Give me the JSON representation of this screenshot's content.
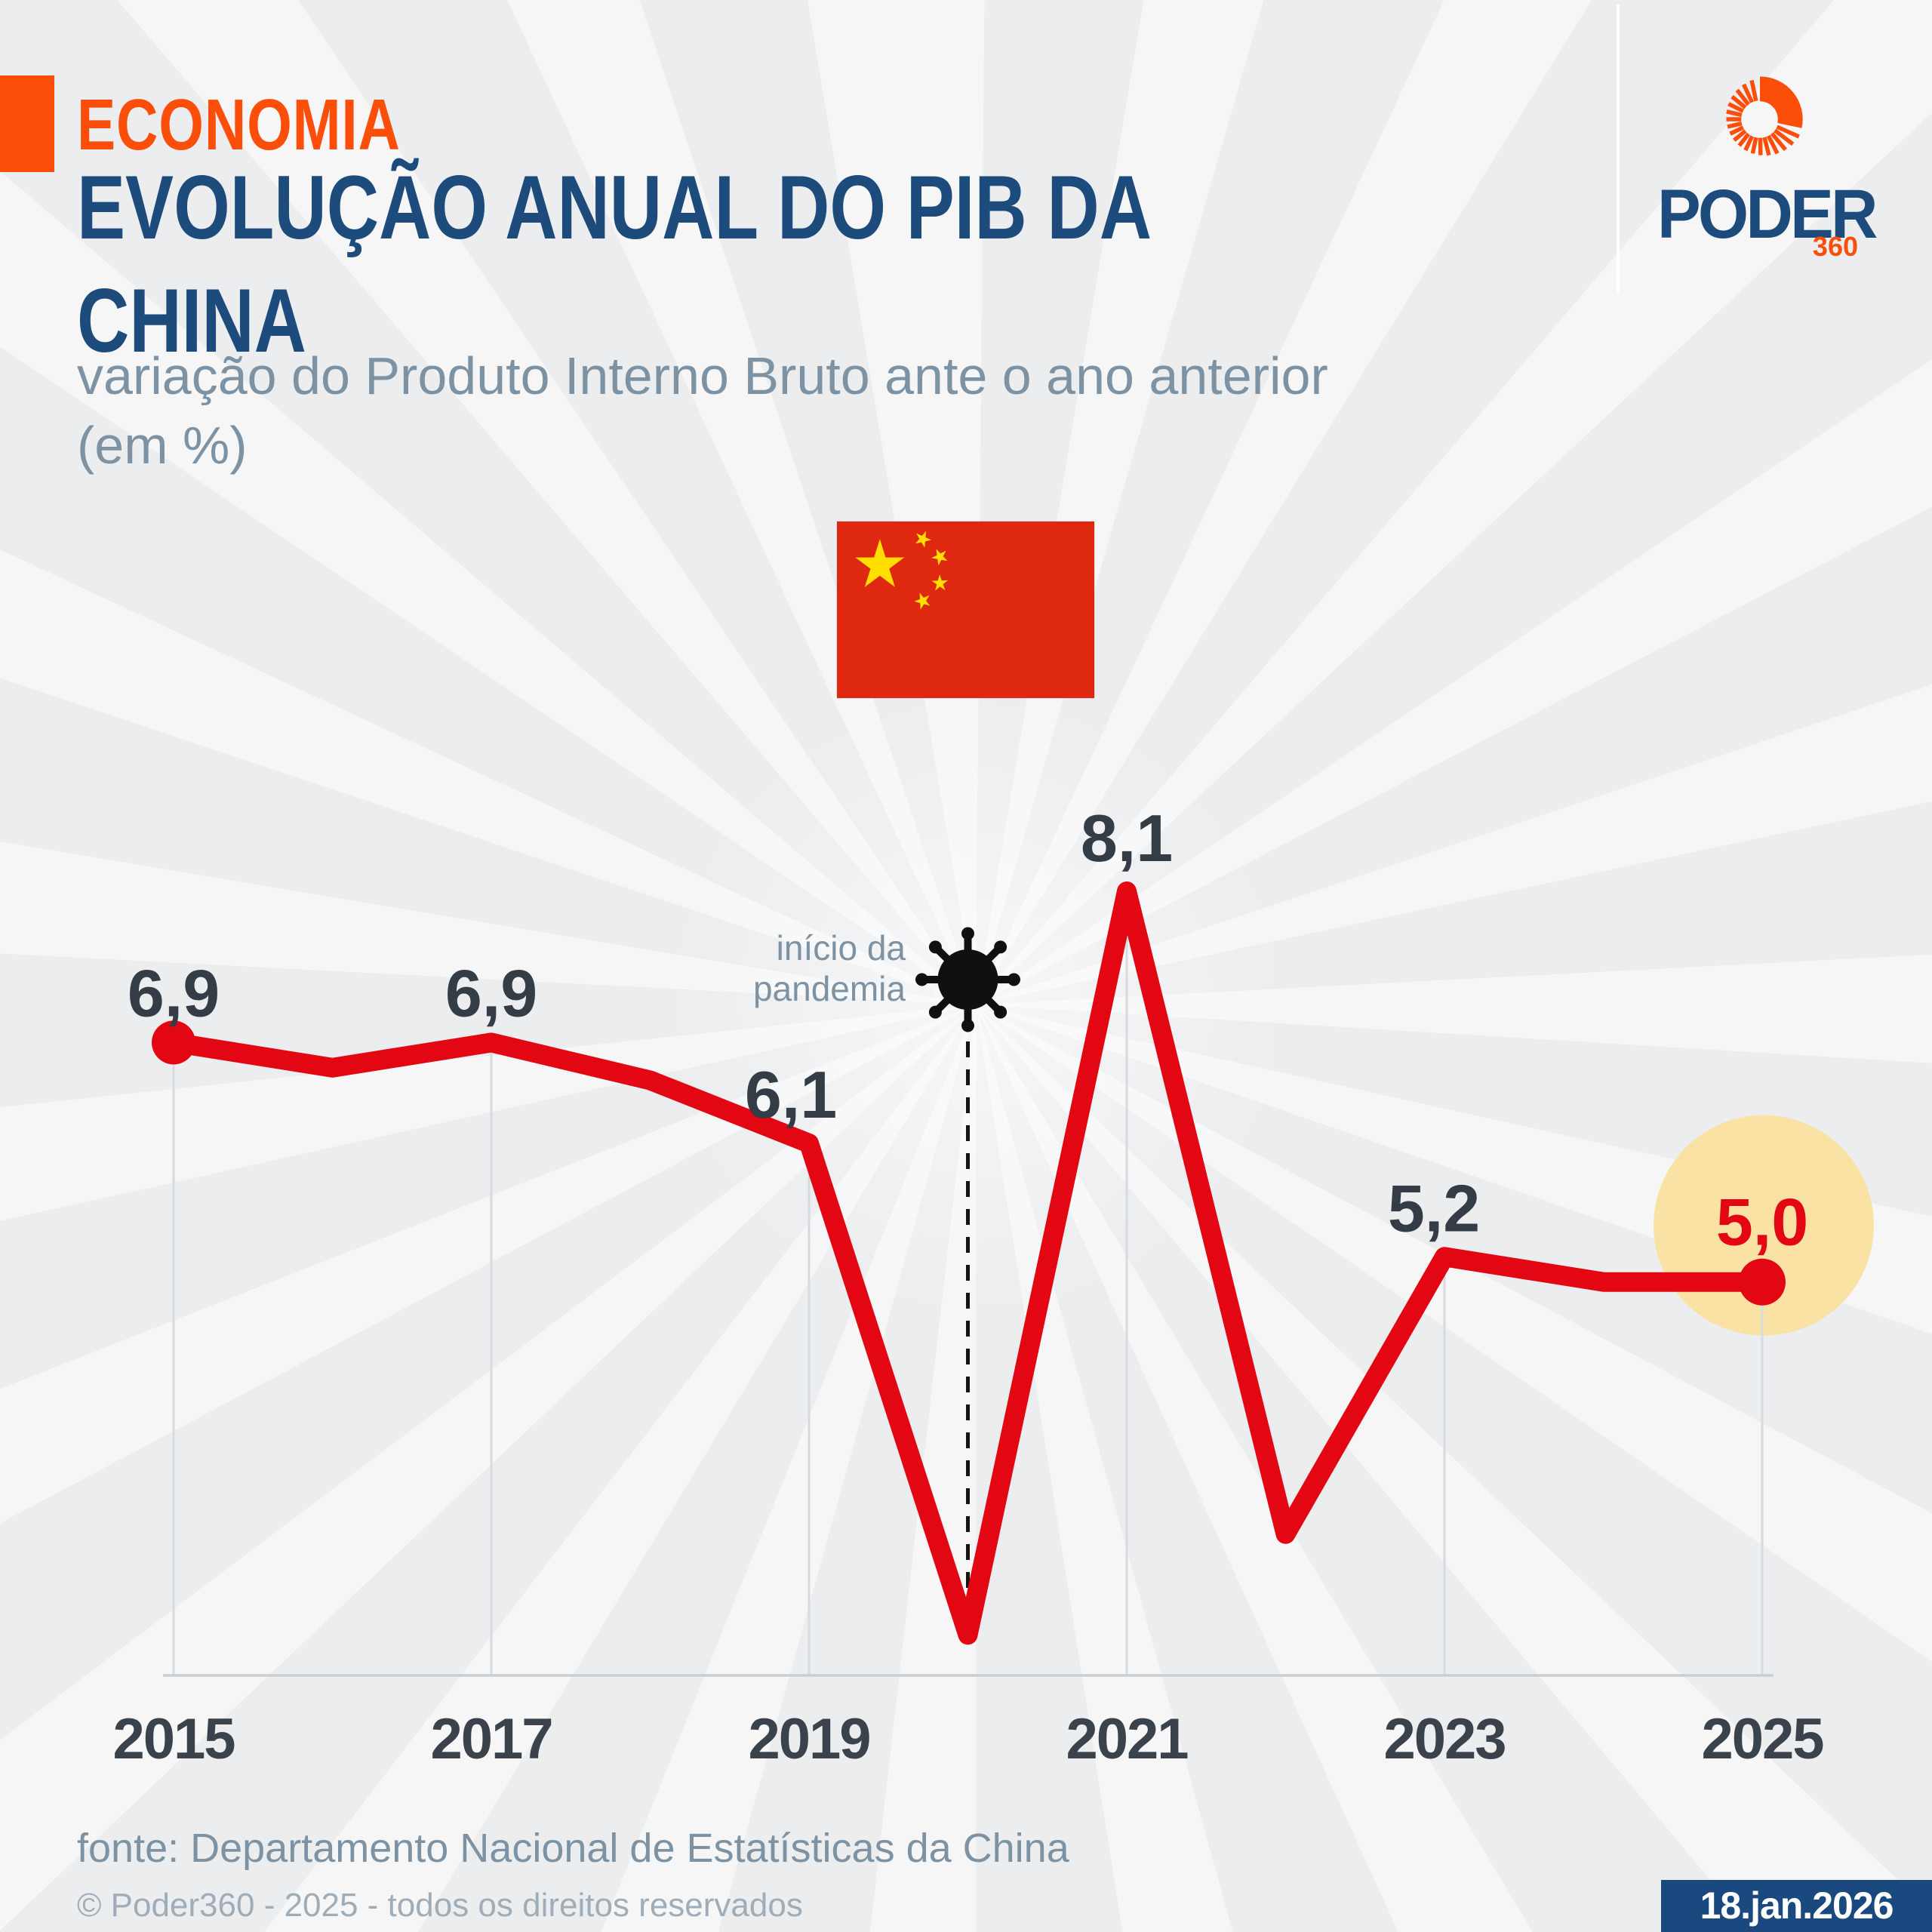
{
  "kicker": {
    "label": "ECONOMIA"
  },
  "header": {
    "title_line1": "EVOLUÇÃO ANUAL DO PIB DA",
    "title_line2": "CHINA",
    "subtitle_line1": "variação do Produto Interno Bruto ante o ano anterior",
    "subtitle_line2": "(em %)"
  },
  "logo": {
    "wordmark": "PODER",
    "sub": "360"
  },
  "flag": {
    "country": "china"
  },
  "annotation": {
    "line1": "início da",
    "line2": "pandemia"
  },
  "footer": {
    "source": "fonte: Departamento Nacional de Estatísticas da China",
    "copyright": "© Poder360 - 2025 - todos os direitos reservados",
    "date_badge": "18.jan.2026"
  },
  "colors": {
    "background": "#ecedef",
    "accent_orange": "#fb4e0b",
    "navy": "#1d4c7c",
    "red": "#e30613",
    "dark_label": "#343c45",
    "year_label": "#3a424b",
    "slate": "#7d93a3",
    "copyright_gray": "#9fadb9",
    "gridline": "#d7dbdf",
    "baseline": "#c7ced4",
    "highlight_yellow": "#f9e2a4",
    "badge_navy": "#19497e",
    "virus_black": "#101010",
    "flag_red": "#de2910",
    "flag_gold": "#ffde00"
  },
  "chart_data": {
    "type": "line",
    "title": "Evolução anual do PIB da China",
    "unit": "%",
    "x": [
      2015,
      2016,
      2017,
      2018,
      2019,
      2020,
      2021,
      2022,
      2023,
      2024,
      2025
    ],
    "values": [
      6.9,
      6.7,
      6.9,
      6.6,
      6.1,
      2.2,
      8.1,
      3.0,
      5.2,
      5.0,
      5.0
    ],
    "labeled_points": [
      {
        "year": 2015,
        "label": "6,9",
        "highlight": false
      },
      {
        "year": 2017,
        "label": "6,9",
        "highlight": false
      },
      {
        "year": 2019,
        "label": "6,1",
        "highlight": false
      },
      {
        "year": 2021,
        "label": "8,1",
        "highlight": false
      },
      {
        "year": 2023,
        "label": "5,2",
        "highlight": false
      },
      {
        "year": 2025,
        "label": "5,0",
        "highlight": true
      }
    ],
    "x_tick_labels": [
      "2015",
      "2017",
      "2019",
      "2021",
      "2023",
      "2025"
    ],
    "annotation_year": 2020,
    "ylim": [
      1.8,
      8.6
    ],
    "grid": "vertical-lines-at-tick-years",
    "legend": "none",
    "markers": "endpoints-only"
  }
}
